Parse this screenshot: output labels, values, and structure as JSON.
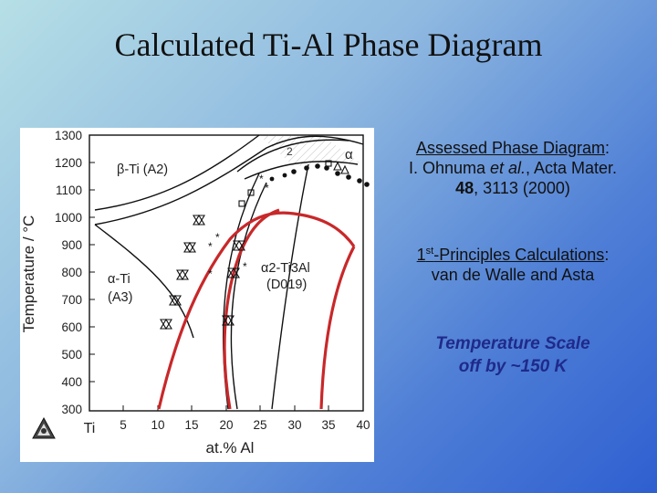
{
  "slide": {
    "title": "Calculated Ti-Al Phase Diagram"
  },
  "assessed": {
    "label": "Assessed Phase Diagram",
    "colon": ":",
    "citation_line1_author": "I. Ohnuma ",
    "citation_line1_etal": "et al.",
    "citation_line1_rest": ", Acta Mater.",
    "citation_line2_vol": "48",
    "citation_line2_rest": ", 3113 (2000)"
  },
  "calculations": {
    "label_pre": "1",
    "label_sup": "st",
    "label_post": "-Principles Calculations",
    "colon": ":",
    "authors": "van de Walle and Asta"
  },
  "note": {
    "line1": "Temperature Scale",
    "line2": "off by ~150 K"
  },
  "diagram": {
    "ylabel": "Temperature / °C",
    "xlabel": "at.% Al",
    "x_start_label": "Ti",
    "y_ticks": [
      "1300",
      "1200",
      "1100",
      "1000",
      "900",
      "800",
      "700",
      "600",
      "500",
      "400",
      "300"
    ],
    "x_ticks": [
      "5",
      "10",
      "15",
      "20",
      "25",
      "30",
      "35",
      "40"
    ],
    "phase_beta": "β-Ti (A2)",
    "phase_alpha_line1": "α-Ti",
    "phase_alpha_line2": "(A3)",
    "phase_alpha2_line1": "α2-Ti3Al",
    "phase_alpha2_line2": "(D019)",
    "phase_alpha_hi": "α",
    "region_2": "2",
    "colors": {
      "calculated_curve": "#c8282a",
      "assessed_lines": "#111111",
      "axis": "#111111",
      "data_points": "#111111"
    }
  }
}
